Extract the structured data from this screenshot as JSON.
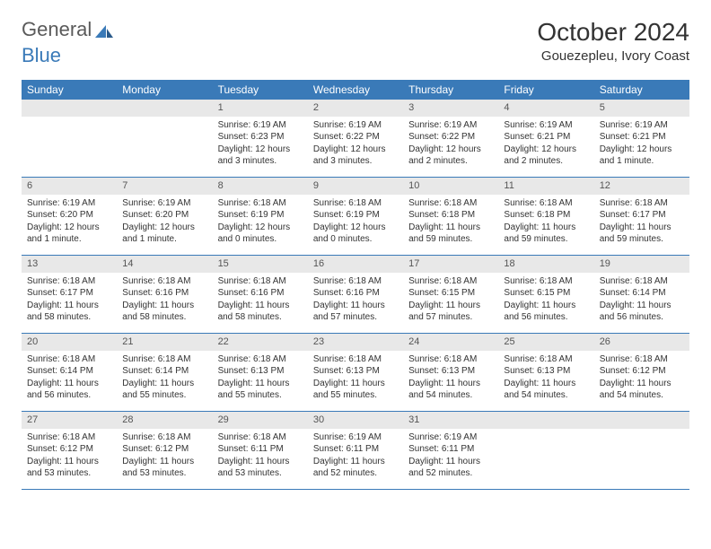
{
  "logo": {
    "text_gray": "General",
    "text_blue": "Blue"
  },
  "title": "October 2024",
  "location": "Gouezepleu, Ivory Coast",
  "colors": {
    "header_bg": "#3a7ab8",
    "header_text": "#ffffff",
    "daynum_bg": "#e8e8e8",
    "text": "#333333",
    "rule": "#3a7ab8"
  },
  "weekdays": [
    "Sunday",
    "Monday",
    "Tuesday",
    "Wednesday",
    "Thursday",
    "Friday",
    "Saturday"
  ],
  "weeks": [
    [
      null,
      null,
      {
        "n": "1",
        "sunrise": "6:19 AM",
        "sunset": "6:23 PM",
        "daylight": "12 hours and 3 minutes."
      },
      {
        "n": "2",
        "sunrise": "6:19 AM",
        "sunset": "6:22 PM",
        "daylight": "12 hours and 3 minutes."
      },
      {
        "n": "3",
        "sunrise": "6:19 AM",
        "sunset": "6:22 PM",
        "daylight": "12 hours and 2 minutes."
      },
      {
        "n": "4",
        "sunrise": "6:19 AM",
        "sunset": "6:21 PM",
        "daylight": "12 hours and 2 minutes."
      },
      {
        "n": "5",
        "sunrise": "6:19 AM",
        "sunset": "6:21 PM",
        "daylight": "12 hours and 1 minute."
      }
    ],
    [
      {
        "n": "6",
        "sunrise": "6:19 AM",
        "sunset": "6:20 PM",
        "daylight": "12 hours and 1 minute."
      },
      {
        "n": "7",
        "sunrise": "6:19 AM",
        "sunset": "6:20 PM",
        "daylight": "12 hours and 1 minute."
      },
      {
        "n": "8",
        "sunrise": "6:18 AM",
        "sunset": "6:19 PM",
        "daylight": "12 hours and 0 minutes."
      },
      {
        "n": "9",
        "sunrise": "6:18 AM",
        "sunset": "6:19 PM",
        "daylight": "12 hours and 0 minutes."
      },
      {
        "n": "10",
        "sunrise": "6:18 AM",
        "sunset": "6:18 PM",
        "daylight": "11 hours and 59 minutes."
      },
      {
        "n": "11",
        "sunrise": "6:18 AM",
        "sunset": "6:18 PM",
        "daylight": "11 hours and 59 minutes."
      },
      {
        "n": "12",
        "sunrise": "6:18 AM",
        "sunset": "6:17 PM",
        "daylight": "11 hours and 59 minutes."
      }
    ],
    [
      {
        "n": "13",
        "sunrise": "6:18 AM",
        "sunset": "6:17 PM",
        "daylight": "11 hours and 58 minutes."
      },
      {
        "n": "14",
        "sunrise": "6:18 AM",
        "sunset": "6:16 PM",
        "daylight": "11 hours and 58 minutes."
      },
      {
        "n": "15",
        "sunrise": "6:18 AM",
        "sunset": "6:16 PM",
        "daylight": "11 hours and 58 minutes."
      },
      {
        "n": "16",
        "sunrise": "6:18 AM",
        "sunset": "6:16 PM",
        "daylight": "11 hours and 57 minutes."
      },
      {
        "n": "17",
        "sunrise": "6:18 AM",
        "sunset": "6:15 PM",
        "daylight": "11 hours and 57 minutes."
      },
      {
        "n": "18",
        "sunrise": "6:18 AM",
        "sunset": "6:15 PM",
        "daylight": "11 hours and 56 minutes."
      },
      {
        "n": "19",
        "sunrise": "6:18 AM",
        "sunset": "6:14 PM",
        "daylight": "11 hours and 56 minutes."
      }
    ],
    [
      {
        "n": "20",
        "sunrise": "6:18 AM",
        "sunset": "6:14 PM",
        "daylight": "11 hours and 56 minutes."
      },
      {
        "n": "21",
        "sunrise": "6:18 AM",
        "sunset": "6:14 PM",
        "daylight": "11 hours and 55 minutes."
      },
      {
        "n": "22",
        "sunrise": "6:18 AM",
        "sunset": "6:13 PM",
        "daylight": "11 hours and 55 minutes."
      },
      {
        "n": "23",
        "sunrise": "6:18 AM",
        "sunset": "6:13 PM",
        "daylight": "11 hours and 55 minutes."
      },
      {
        "n": "24",
        "sunrise": "6:18 AM",
        "sunset": "6:13 PM",
        "daylight": "11 hours and 54 minutes."
      },
      {
        "n": "25",
        "sunrise": "6:18 AM",
        "sunset": "6:13 PM",
        "daylight": "11 hours and 54 minutes."
      },
      {
        "n": "26",
        "sunrise": "6:18 AM",
        "sunset": "6:12 PM",
        "daylight": "11 hours and 54 minutes."
      }
    ],
    [
      {
        "n": "27",
        "sunrise": "6:18 AM",
        "sunset": "6:12 PM",
        "daylight": "11 hours and 53 minutes."
      },
      {
        "n": "28",
        "sunrise": "6:18 AM",
        "sunset": "6:12 PM",
        "daylight": "11 hours and 53 minutes."
      },
      {
        "n": "29",
        "sunrise": "6:18 AM",
        "sunset": "6:11 PM",
        "daylight": "11 hours and 53 minutes."
      },
      {
        "n": "30",
        "sunrise": "6:19 AM",
        "sunset": "6:11 PM",
        "daylight": "11 hours and 52 minutes."
      },
      {
        "n": "31",
        "sunrise": "6:19 AM",
        "sunset": "6:11 PM",
        "daylight": "11 hours and 52 minutes."
      },
      null,
      null
    ]
  ],
  "labels": {
    "sunrise": "Sunrise:",
    "sunset": "Sunset:",
    "daylight": "Daylight:"
  }
}
